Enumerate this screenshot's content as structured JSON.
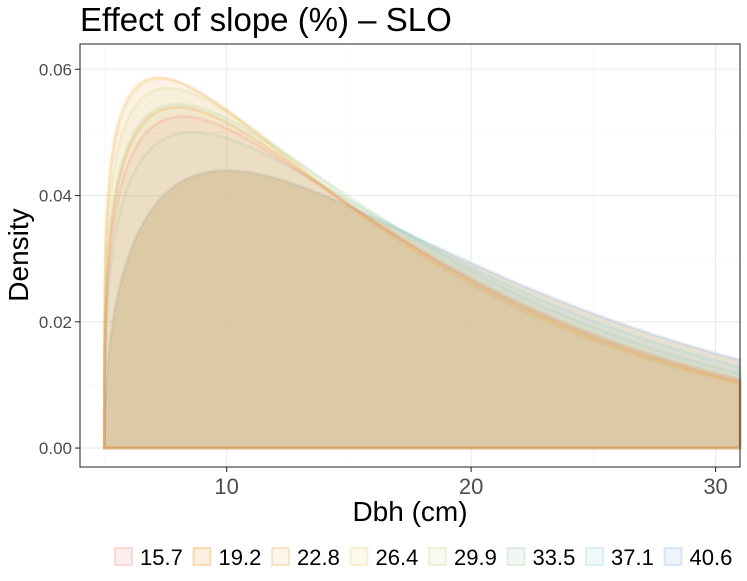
{
  "chart_data": {
    "type": "area",
    "title": "Effect of slope (%) – SLO",
    "xlabel": "Dbh (cm)",
    "ylabel": "Density",
    "xlim": [
      4.0,
      31.0
    ],
    "ylim": [
      -0.003,
      0.064
    ],
    "x_ticks": [
      10,
      20,
      30
    ],
    "x_tick_labels": [
      "10",
      "20",
      "30"
    ],
    "y_ticks": [
      0.0,
      0.02,
      0.04,
      0.06
    ],
    "y_tick_labels": [
      "0.00",
      "0.02",
      "0.04",
      "0.06"
    ],
    "x_min_threshold": 5.0,
    "legend_position": "bottom",
    "legend_entries": [
      "15.7",
      "19.2",
      "22.8",
      "26.4",
      "29.9",
      "33.5",
      "37.1",
      "40.6"
    ],
    "series": [
      {
        "name": "15.7",
        "peak_x": 8.2,
        "peak_density": 0.0525,
        "tail_density_at_31": 0.0108,
        "fill": "#f8766d",
        "alpha": 0.06
      },
      {
        "name": "19.2",
        "peak_x": 8.0,
        "peak_density": 0.054,
        "tail_density_at_31": 0.0105,
        "fill": "#e58700",
        "alpha": 0.06
      },
      {
        "name": "22.8",
        "peak_x": 7.2,
        "peak_density": 0.0587,
        "tail_density_at_31": 0.0102,
        "fill": "#f4a736",
        "alpha": 0.08
      },
      {
        "name": "26.4",
        "peak_x": 7.3,
        "peak_density": 0.0585,
        "tail_density_at_31": 0.0104,
        "fill": "#e9c46a",
        "alpha": 0.08
      },
      {
        "name": "29.9",
        "peak_x": 7.6,
        "peak_density": 0.057,
        "tail_density_at_31": 0.011,
        "fill": "#c9d47a",
        "alpha": 0.06
      },
      {
        "name": "33.5",
        "peak_x": 8.0,
        "peak_density": 0.0545,
        "tail_density_at_31": 0.0118,
        "fill": "#8fc7a0",
        "alpha": 0.06
      },
      {
        "name": "37.1",
        "peak_x": 8.6,
        "peak_density": 0.05,
        "tail_density_at_31": 0.0128,
        "fill": "#7ecbd2",
        "alpha": 0.06
      },
      {
        "name": "40.6",
        "peak_x": 10.0,
        "peak_density": 0.044,
        "tail_density_at_31": 0.014,
        "fill": "#7aa7e0",
        "alpha": 0.06
      }
    ],
    "grid": true
  },
  "colors": {
    "panel_border": "#333333",
    "grid": "#ebebeb",
    "base_fill": "#e7dfcc"
  }
}
